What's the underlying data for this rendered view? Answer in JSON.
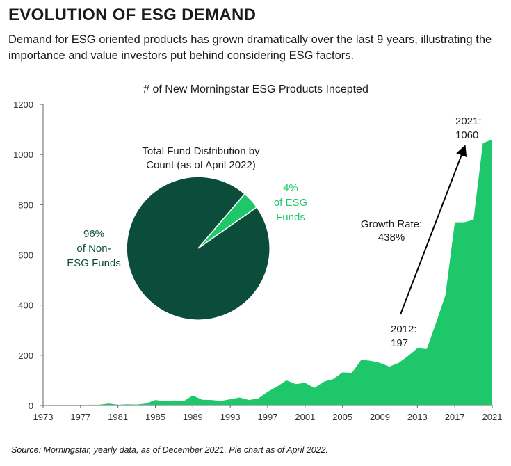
{
  "header": {
    "title": "EVOLUTION OF ESG DEMAND",
    "subtitle": "Demand for ESG oriented products has grown dramatically over the last 9 years, illustrating the importance and value investors put behind considering ESG factors."
  },
  "footer": {
    "source": "Source: Morningstar, yearly data, as of December 2021. Pie chart as of April 2022."
  },
  "colors": {
    "area": "#1ec86a",
    "pie_dark": "#0b4d3a",
    "pie_light": "#1ec86a",
    "axis": "#666666"
  },
  "chart_data": [
    {
      "type": "area",
      "title": "# of New Morningstar ESG Products Incepted",
      "xlabel": "",
      "ylabel": "",
      "xlim": [
        1973,
        2021
      ],
      "ylim": [
        0,
        1200
      ],
      "yticks": [
        0,
        200,
        400,
        600,
        800,
        1000,
        1200
      ],
      "xticks": [
        1973,
        1977,
        1981,
        1985,
        1989,
        1993,
        1997,
        2001,
        2005,
        2009,
        2013,
        2017,
        2021
      ],
      "grid": false,
      "x": [
        1973,
        1974,
        1975,
        1976,
        1977,
        1978,
        1979,
        1980,
        1981,
        1982,
        1983,
        1984,
        1985,
        1986,
        1987,
        1988,
        1989,
        1990,
        1991,
        1992,
        1993,
        1994,
        1995,
        1996,
        1997,
        1998,
        1999,
        2000,
        2001,
        2002,
        2003,
        2004,
        2005,
        2006,
        2007,
        2008,
        2009,
        2010,
        2011,
        2012,
        2013,
        2014,
        2015,
        2016,
        2017,
        2018,
        2019,
        2020,
        2021
      ],
      "y": [
        2,
        1,
        1,
        2,
        2,
        3,
        3,
        8,
        3,
        5,
        4,
        8,
        22,
        17,
        20,
        17,
        40,
        23,
        22,
        18,
        25,
        32,
        22,
        28,
        55,
        75,
        100,
        85,
        90,
        70,
        95,
        105,
        132,
        130,
        182,
        178,
        170,
        155,
        170,
        197,
        228,
        225,
        330,
        440,
        730,
        730,
        740,
        1045,
        1060
      ],
      "annotations": [
        {
          "label_line1": "2012:",
          "label_line2": "197"
        },
        {
          "label_line1": "2021:",
          "label_line2": "1060"
        },
        {
          "label_line1": "Growth Rate:",
          "label_line2": "438%"
        }
      ]
    },
    {
      "type": "pie",
      "title_line1": "Total Fund Distribution by",
      "title_line2": "Count (as of April 2022)",
      "slices": [
        {
          "label_lines": [
            "96%",
            "of Non-",
            "ESG Funds"
          ],
          "value": 96
        },
        {
          "label_lines": [
            "4%",
            "of ESG",
            "Funds"
          ],
          "value": 4
        }
      ]
    }
  ]
}
